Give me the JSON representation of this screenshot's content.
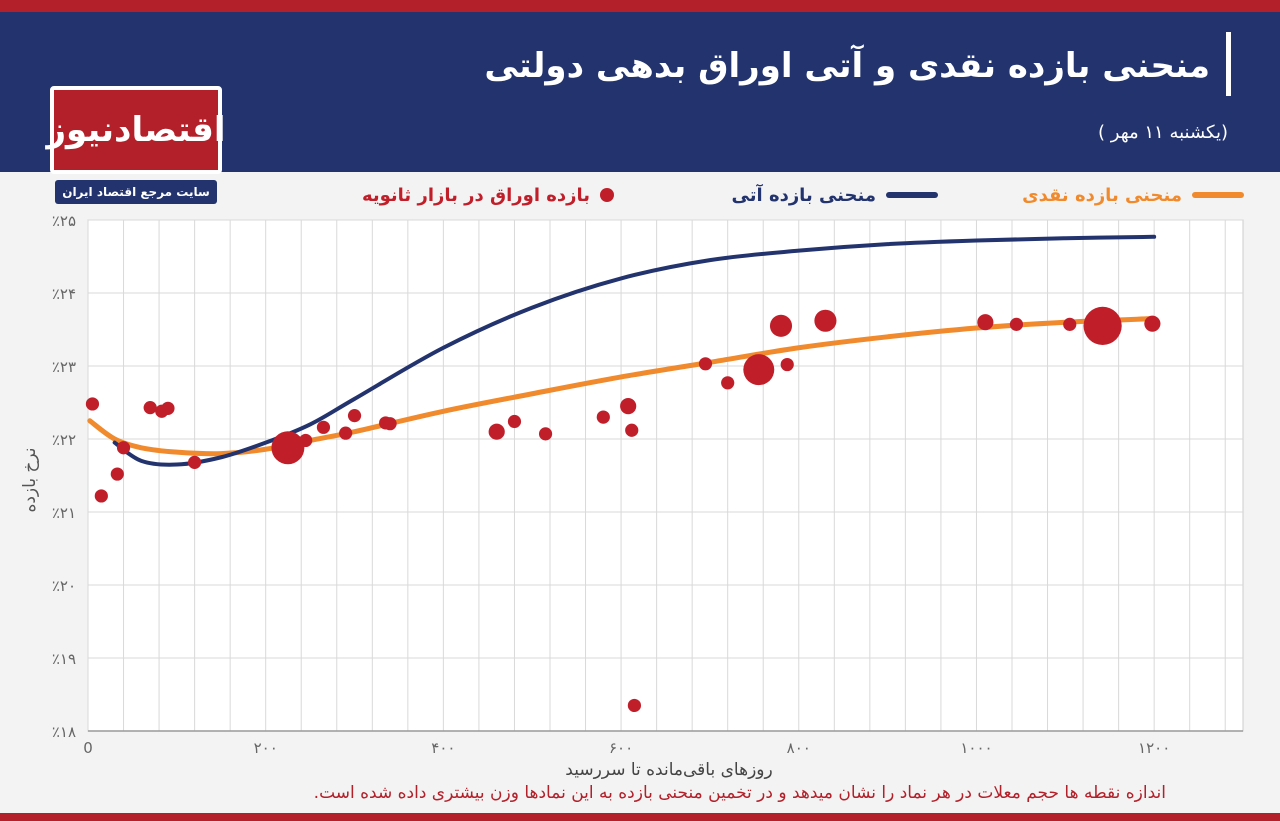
{
  "header": {
    "title": "منحنی بازده نقدی و آتی اوراق بدهی دولتی",
    "date": "(یکشنبه ۱۱ مهر )"
  },
  "logo": {
    "text": "اقتصادنیوز",
    "tagline": "سایت مرجع اقتصاد ایران"
  },
  "legend": {
    "spot": "منحنی بازده نقدی",
    "forward": "منحنی بازده آتی",
    "bonds": "بازده اوراق در بازار ثانویه"
  },
  "footnote": "اندازه نقطه ها حجم معلات در هر نماد را نشان میدهد و در تخمین منحنی بازده به این نمادها وزن بیشتری داده شده است.",
  "colors": {
    "spot": "#f08a2c",
    "forward": "#22336e",
    "bonds": "#c01f2a",
    "header_bg": "#22336e",
    "accent_red": "#b3202a"
  },
  "chart_data": {
    "type": "scatter",
    "xlabel": "روزهای باقی‌مانده تا سررسید",
    "ylabel": "نرخ بازده",
    "xlim": [
      0,
      1300
    ],
    "ylim": [
      18,
      25
    ],
    "x_ticks": [
      0,
      200,
      400,
      600,
      800,
      1000,
      1200
    ],
    "x_tick_labels": [
      "0",
      "۲۰۰",
      "۴۰۰",
      "۶۰۰",
      "۸۰۰",
      "۱۰۰۰",
      "۱۲۰۰"
    ],
    "y_ticks": [
      18,
      19,
      20,
      21,
      22,
      23,
      24,
      25
    ],
    "y_tick_labels": [
      "٪۱۸",
      "٪۱۹",
      "٪۲۰",
      "٪۲۱",
      "٪۲۲",
      "٪۲۳",
      "٪۲۴",
      "٪۲۵"
    ],
    "grid": true,
    "series": [
      {
        "name": "منحنی بازده نقدی",
        "kind": "line",
        "color": "#f08a2c",
        "x": [
          2,
          30,
          60,
          100,
          150,
          200,
          250,
          300,
          400,
          500,
          600,
          700,
          800,
          900,
          1000,
          1100,
          1200
        ],
        "y": [
          22.25,
          22.0,
          21.88,
          21.82,
          21.8,
          21.86,
          21.98,
          22.1,
          22.38,
          22.62,
          22.85,
          23.05,
          23.25,
          23.4,
          23.52,
          23.6,
          23.65
        ]
      },
      {
        "name": "منحنی بازده آتی",
        "kind": "line",
        "color": "#22336e",
        "x": [
          30,
          60,
          100,
          150,
          200,
          250,
          300,
          400,
          500,
          600,
          700,
          800,
          900,
          1000,
          1100,
          1200
        ],
        "y": [
          21.95,
          21.7,
          21.65,
          21.75,
          21.95,
          22.2,
          22.55,
          23.25,
          23.8,
          24.2,
          24.45,
          24.58,
          24.67,
          24.72,
          24.75,
          24.77
        ]
      },
      {
        "name": "بازده اوراق در بازار ثانویه",
        "kind": "scatter",
        "color": "#c01f2a",
        "x": [
          5,
          15,
          33,
          40,
          70,
          83,
          90,
          120,
          225,
          245,
          265,
          290,
          300,
          335,
          340,
          460,
          480,
          515,
          580,
          608,
          612,
          615,
          695,
          720,
          755,
          780,
          787,
          830,
          1010,
          1045,
          1105,
          1142,
          1155,
          1198
        ],
        "y": [
          22.48,
          21.22,
          21.52,
          21.88,
          22.43,
          22.38,
          22.42,
          21.68,
          21.88,
          21.98,
          22.16,
          22.08,
          22.32,
          22.22,
          22.21,
          22.1,
          22.24,
          22.07,
          22.3,
          22.45,
          22.12,
          18.35,
          23.03,
          22.77,
          22.95,
          23.55,
          23.02,
          23.62,
          23.6,
          23.57,
          23.57,
          23.55,
          23.55,
          23.58
        ],
        "volume": [
          1,
          1,
          1,
          1,
          1,
          1,
          1,
          1,
          14,
          1,
          1,
          1,
          1,
          1,
          1,
          2,
          1,
          1,
          1,
          2,
          1,
          1,
          1,
          1,
          12,
          5,
          1,
          5,
          2,
          1,
          1,
          20,
          1,
          2
        ]
      }
    ]
  }
}
